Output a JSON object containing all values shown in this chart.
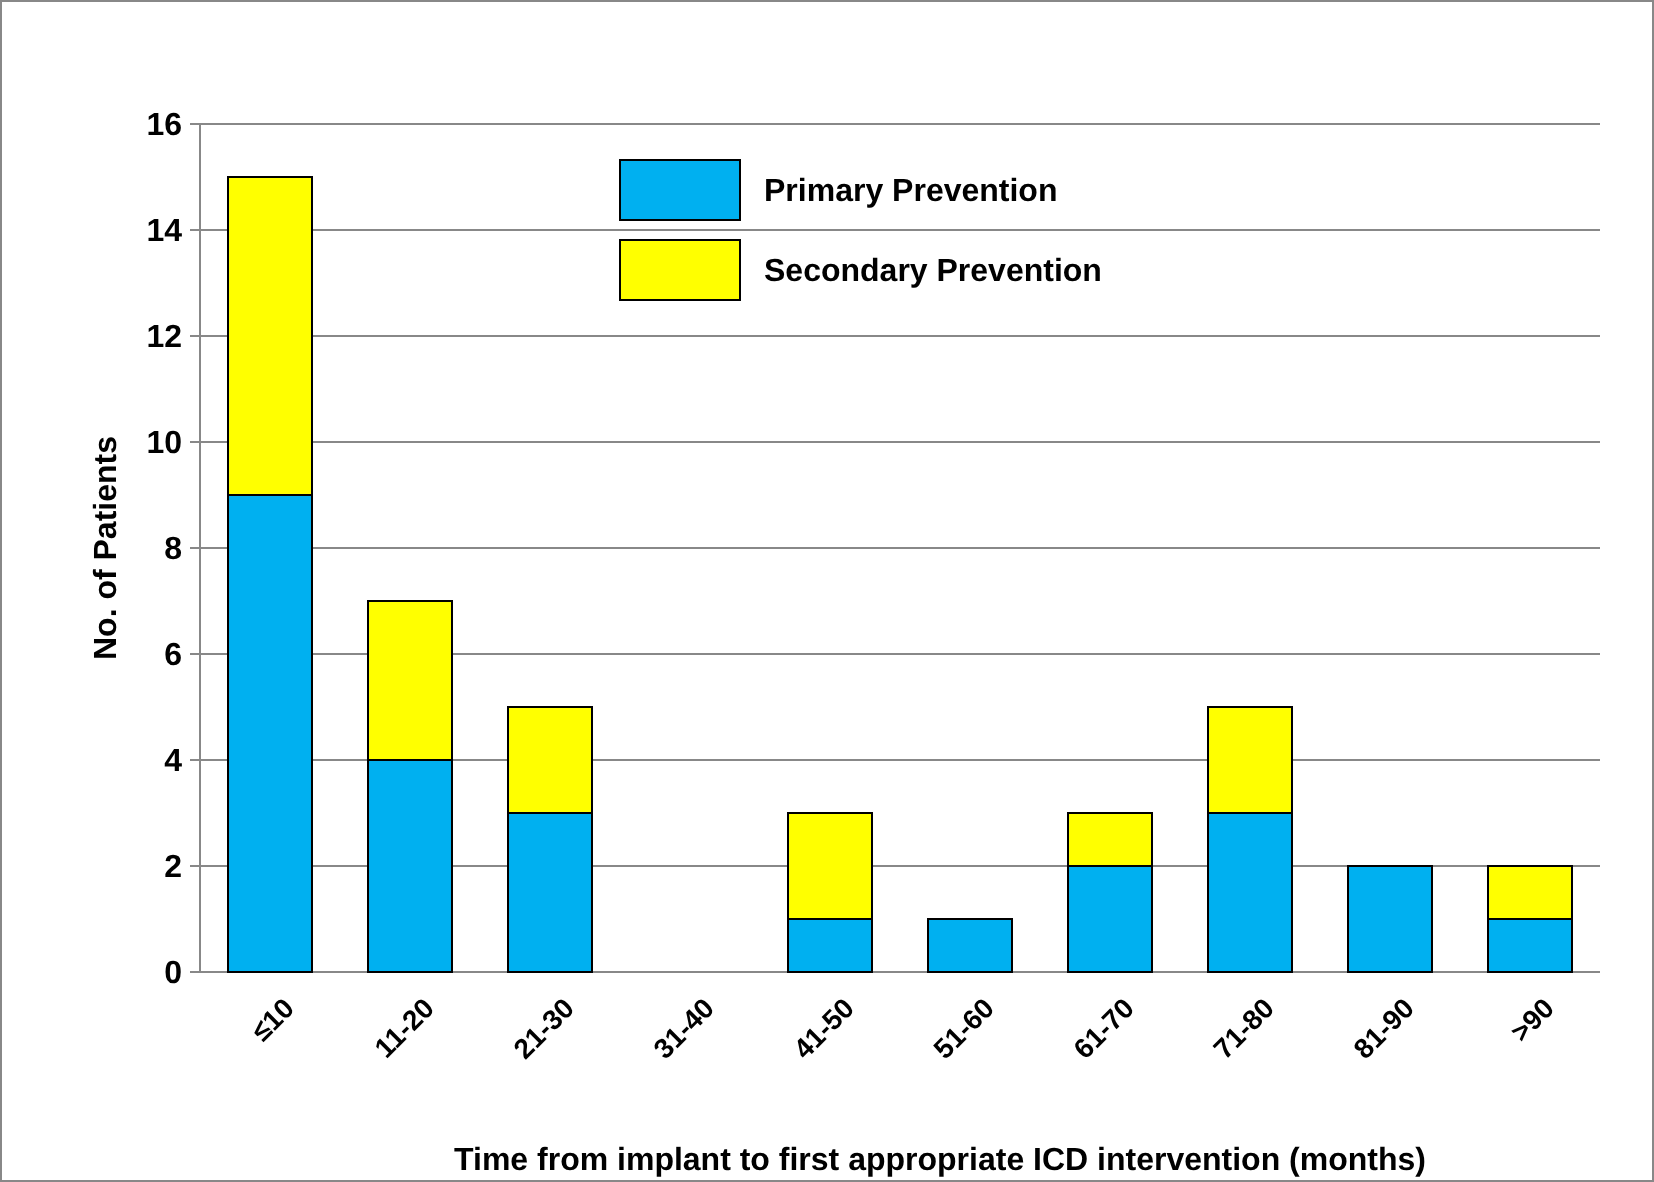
{
  "chart_data": {
    "type": "bar",
    "stacked": true,
    "xlabel": "Time from implant to first appropriate ICD intervention (months)",
    "ylabel": "No. of Patients",
    "categories": [
      "≤10",
      "11-20",
      "21-30",
      "31-40",
      "41-50",
      "51-60",
      "61-70",
      "71-80",
      "81-90",
      ">90"
    ],
    "series": [
      {
        "name": "Primary Prevention",
        "color": "#00b0f0",
        "values": [
          9,
          4,
          3,
          0,
          1,
          1,
          2,
          3,
          2,
          1
        ]
      },
      {
        "name": "Secondary Prevention",
        "color": "#ffff00",
        "values": [
          6,
          3,
          2,
          0,
          2,
          0,
          1,
          2,
          0,
          1
        ]
      }
    ],
    "ylim": [
      0,
      16
    ],
    "yticks": [
      0,
      2,
      4,
      6,
      8,
      10,
      12,
      14,
      16
    ],
    "grid": "y",
    "legend": "top"
  }
}
